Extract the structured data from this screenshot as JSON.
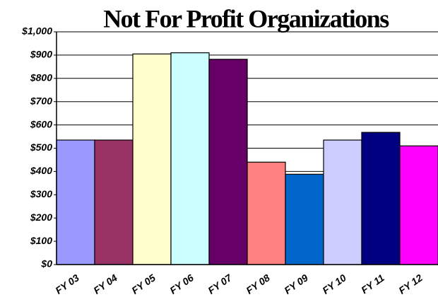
{
  "chart_data": {
    "type": "bar",
    "title": "Not For Profit Organizations",
    "categories": [
      "FY 03",
      "FY 04",
      "FY 05",
      "FY 06",
      "FY 07",
      "FY 08",
      "FY 09",
      "FY 10",
      "FY 11",
      "FY 12"
    ],
    "values": [
      535,
      535,
      905,
      910,
      882,
      440,
      388,
      535,
      568,
      510
    ],
    "colors": [
      "#9999ff",
      "#993366",
      "#ffffcc",
      "#ccffff",
      "#660066",
      "#ff8080",
      "#0066cc",
      "#ccccff",
      "#000080",
      "#ff00ff"
    ],
    "ylim": [
      0,
      1000
    ],
    "yticks": [
      {
        "value": 0,
        "label": "$0"
      },
      {
        "value": 100,
        "label": "$100"
      },
      {
        "value": 200,
        "label": "$200"
      },
      {
        "value": 300,
        "label": "$300"
      },
      {
        "value": 400,
        "label": "$400"
      },
      {
        "value": 500,
        "label": "$500"
      },
      {
        "value": 600,
        "label": "$600"
      },
      {
        "value": 700,
        "label": "$700"
      },
      {
        "value": 800,
        "label": "$800"
      },
      {
        "value": 900,
        "label": "$900"
      },
      {
        "value": 1000,
        "label": "$1,000"
      }
    ],
    "grid": true
  }
}
